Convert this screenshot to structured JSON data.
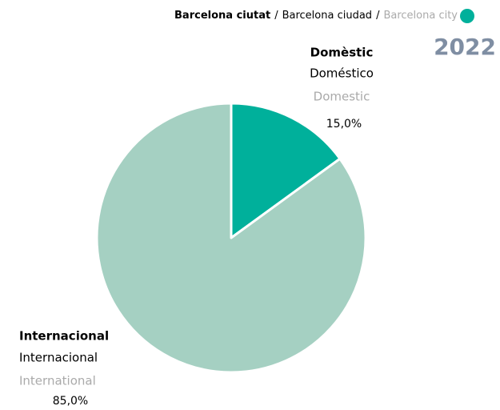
{
  "chart_data": {
    "type": "pie",
    "header_parts": [
      "Barcelona ciutat",
      "Barcelona ciudad",
      "Barcelona city"
    ],
    "separator": "/",
    "marker_color": "#00b09b",
    "year": "2022",
    "categories": [
      "Domèstic",
      "Internacional"
    ],
    "categories_es": [
      "Doméstico",
      "Internacional"
    ],
    "categories_en": [
      "Domestic",
      "International"
    ],
    "values": [
      15,
      85
    ],
    "value_labels": [
      "15,0%",
      "85,0%"
    ],
    "colors": [
      "#00b09b",
      "#a5d0c2"
    ]
  }
}
